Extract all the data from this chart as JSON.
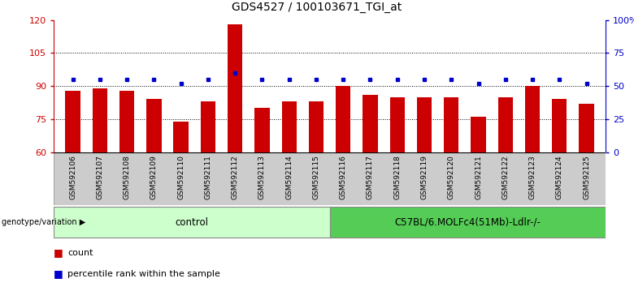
{
  "title": "GDS4527 / 100103671_TGI_at",
  "samples": [
    "GSM592106",
    "GSM592107",
    "GSM592108",
    "GSM592109",
    "GSM592110",
    "GSM592111",
    "GSM592112",
    "GSM592113",
    "GSM592114",
    "GSM592115",
    "GSM592116",
    "GSM592117",
    "GSM592118",
    "GSM592119",
    "GSM592120",
    "GSM592121",
    "GSM592122",
    "GSM592123",
    "GSM592124",
    "GSM592125"
  ],
  "bar_values": [
    88,
    89,
    88,
    84,
    74,
    83,
    118,
    80,
    83,
    83,
    90,
    86,
    85,
    85,
    85,
    76,
    85,
    90,
    84,
    82
  ],
  "percentile_values_left": [
    93,
    93,
    93,
    93,
    91,
    93,
    96,
    93,
    93,
    93,
    93,
    93,
    93,
    93,
    93,
    91,
    93,
    93,
    93,
    91
  ],
  "ylim_left": [
    60,
    120
  ],
  "ylim_right": [
    0,
    100
  ],
  "yticks_left": [
    60,
    75,
    90,
    105,
    120
  ],
  "yticks_right": [
    0,
    25,
    50,
    75,
    100
  ],
  "ytick_labels_right": [
    "0",
    "25",
    "50",
    "75",
    "100%"
  ],
  "grid_values": [
    75,
    90,
    105
  ],
  "bar_color": "#cc0000",
  "dot_color": "#0000cc",
  "control_label": "control",
  "group2_label": "C57BL/6.MOLFc4(51Mb)-Ldlr-/-",
  "control_count": 10,
  "group2_count": 10,
  "genotype_label": "genotype/variation",
  "legend_count_label": "count",
  "legend_pct_label": "percentile rank within the sample",
  "control_color": "#ccffcc",
  "group2_color": "#55cc55",
  "tick_color_left": "#cc0000",
  "tick_color_right": "#0000cc",
  "bg_color": "#ffffff",
  "xlabel_bg_color": "#cccccc",
  "title_fontsize": 10,
  "tick_label_fontsize": 6.5,
  "bar_width": 0.55
}
